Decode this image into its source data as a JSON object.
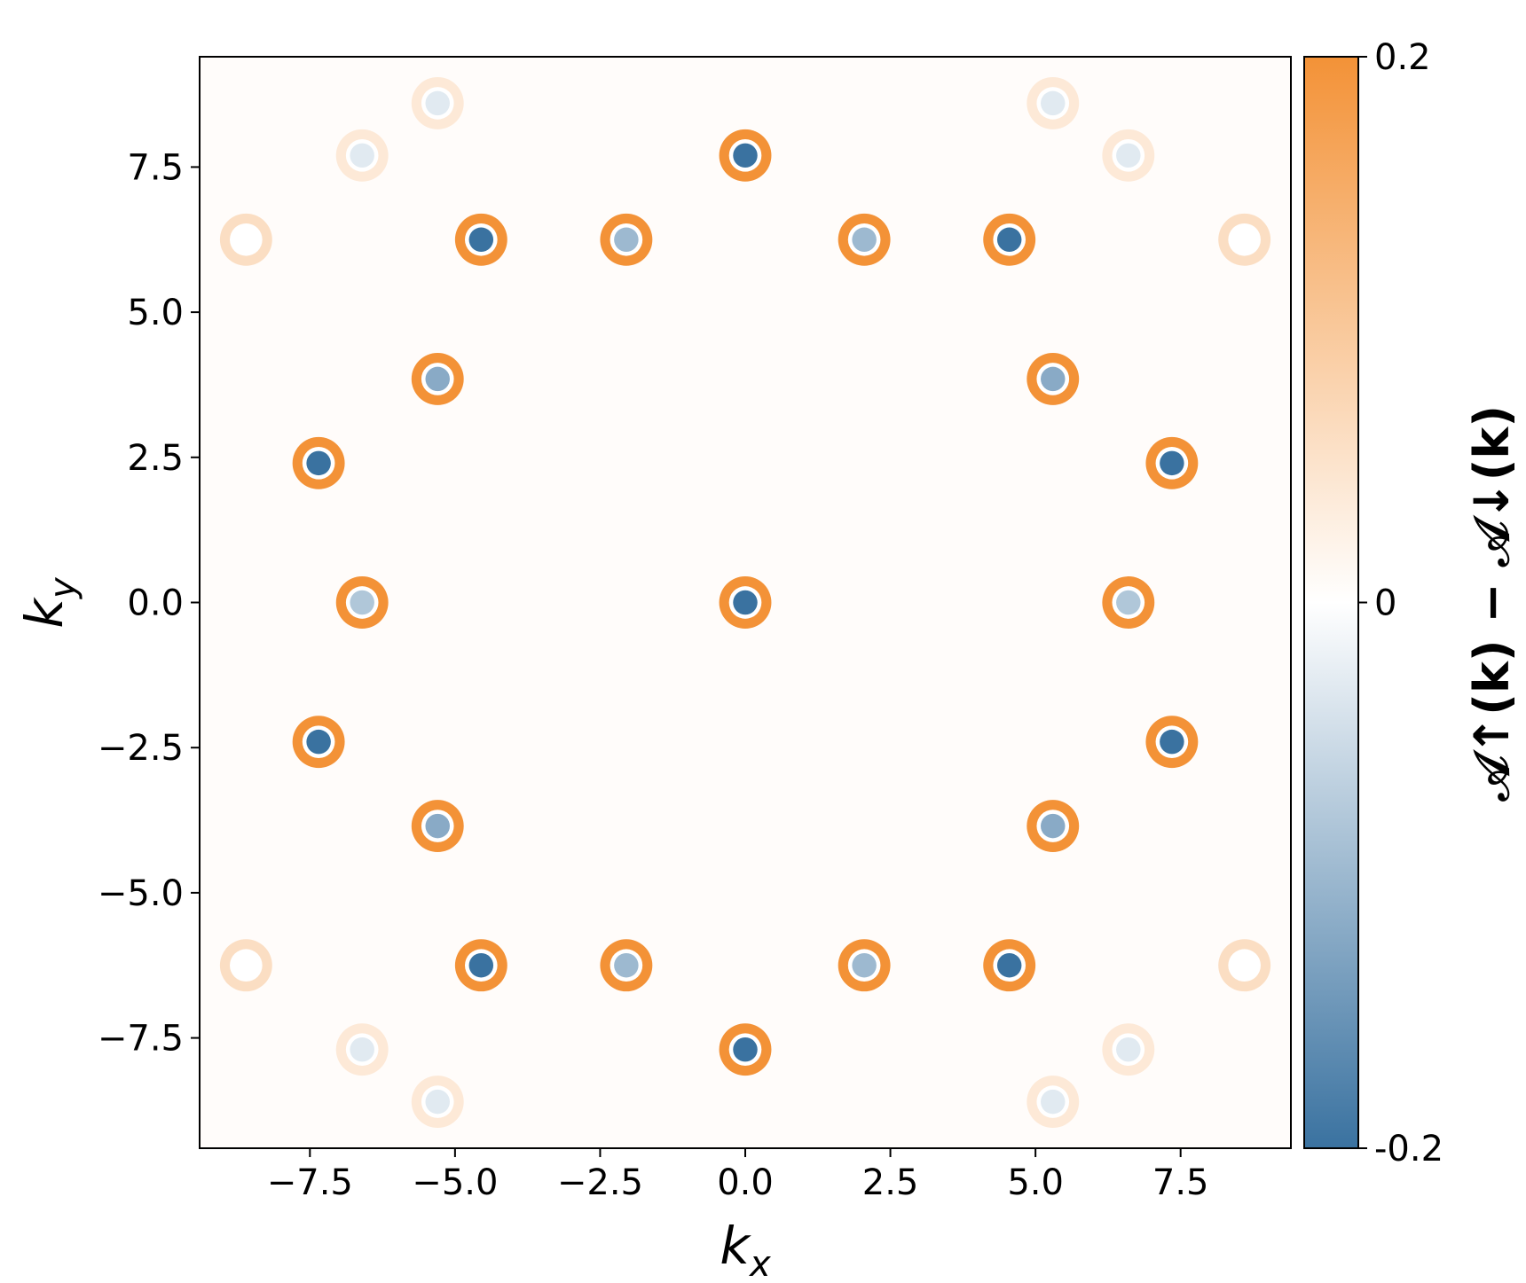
{
  "chart_data": {
    "type": "heatmap",
    "xlabel": {
      "text": "k",
      "subscript": "x"
    },
    "ylabel": {
      "text": "k",
      "subscript": "y"
    },
    "colorbar_label": "𝒜↑(k) − 𝒜↓(k)",
    "x": [
      0,
      0,
      0,
      4.55,
      -4.55,
      4.55,
      -4.55,
      7.35,
      -7.35,
      7.35,
      -7.35,
      2.05,
      -2.05,
      2.05,
      -2.05,
      5.3,
      -5.3,
      5.3,
      -5.3,
      6.6,
      -6.6,
      8.6,
      -8.6,
      8.6,
      -8.6,
      5.3,
      -5.3,
      5.3,
      -5.3,
      6.6,
      -6.6,
      6.6,
      -6.6
    ],
    "y": [
      0,
      7.7,
      -7.7,
      6.25,
      6.25,
      -6.25,
      -6.25,
      2.4,
      2.4,
      -2.4,
      -2.4,
      6.25,
      6.25,
      -6.25,
      -6.25,
      3.85,
      3.85,
      -3.85,
      -3.85,
      0,
      0,
      6.25,
      6.25,
      -6.25,
      -6.25,
      8.6,
      8.6,
      -8.6,
      -8.6,
      7.7,
      7.7,
      -7.7,
      -7.7
    ],
    "center": [
      -0.2,
      -0.2,
      -0.2,
      -0.2,
      -0.2,
      -0.2,
      -0.2,
      -0.2,
      -0.2,
      -0.2,
      -0.2,
      -0.1,
      -0.1,
      -0.1,
      -0.1,
      -0.12,
      -0.12,
      -0.12,
      -0.12,
      -0.08,
      -0.08,
      0,
      0,
      0,
      0,
      -0.03,
      -0.03,
      -0.03,
      -0.03,
      -0.03,
      -0.03,
      -0.03,
      -0.03
    ],
    "ring": [
      0.2,
      0.2,
      0.2,
      0.2,
      0.2,
      0.2,
      0.2,
      0.2,
      0.2,
      0.2,
      0.2,
      0.2,
      0.2,
      0.2,
      0.2,
      0.2,
      0.2,
      0.2,
      0.2,
      0.2,
      0.2,
      0.06,
      0.06,
      0.06,
      0.06,
      0.04,
      0.04,
      0.04,
      0.04,
      0.04,
      0.04,
      0.04,
      0.04
    ],
    "xlim": [
      -9.4,
      9.4
    ],
    "ylim": [
      -9.4,
      9.4
    ],
    "xticks": [
      {
        "value": -7.5,
        "label": "−7.5"
      },
      {
        "value": -5,
        "label": "−5.0"
      },
      {
        "value": -2.5,
        "label": "−2.5"
      },
      {
        "value": 0,
        "label": "0.0"
      },
      2.5,
      {
        "value": 5,
        "label": "5.0"
      },
      7.5
    ],
    "yticks": [
      {
        "value": -7.5,
        "label": "−7.5"
      },
      {
        "value": -5,
        "label": "−5.0"
      },
      {
        "value": -2.5,
        "label": "−2.5"
      },
      {
        "value": 0,
        "label": "0.0"
      },
      2.5,
      {
        "value": 5,
        "label": "5.0"
      },
      7.5
    ],
    "clim": [
      -0.2,
      0.2
    ],
    "cticks": [
      -0.2,
      0,
      0.2
    ],
    "colormap": [
      "#3a72a0",
      "#ffffff",
      "#f39237"
    ]
  }
}
